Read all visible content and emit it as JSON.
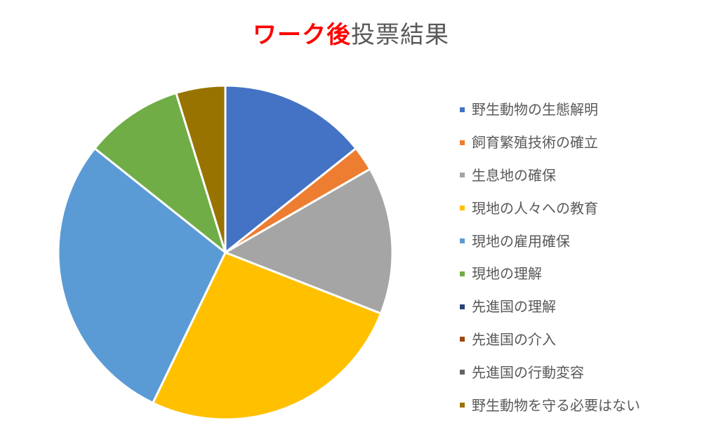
{
  "title": {
    "highlight": "ワーク後",
    "rest": "投票結果",
    "highlight_color": "#ff0000"
  },
  "chart_data": {
    "type": "pie",
    "title": "ワーク後投票結果",
    "legend_position": "right",
    "start_angle_deg": 0,
    "direction": "clockwise",
    "categories": [
      "野生動物の生態解明",
      "飼育繁殖技術の確立",
      "生息地の確保",
      "現地の人々への教育",
      "現地の雇用確保",
      "現地の理解",
      "先進国の理解",
      "先進国の介入",
      "先進国の行動変容",
      "野生動物を守る必要はない"
    ],
    "values": [
      6,
      1,
      6,
      11,
      12,
      4,
      0,
      0,
      0,
      2
    ],
    "percent_approx": [
      14.3,
      2.4,
      14.3,
      26.2,
      28.6,
      9.5,
      0,
      0,
      0,
      4.8
    ],
    "colors": [
      "#4472c4",
      "#ed7d31",
      "#a5a5a5",
      "#ffc000",
      "#5b9bd5",
      "#70ad47",
      "#264478",
      "#9e480e",
      "#636363",
      "#997300"
    ]
  },
  "legend": {
    "items": [
      {
        "label": "野生動物の生態解明",
        "color": "#4472c4"
      },
      {
        "label": "飼育繁殖技術の確立",
        "color": "#ed7d31"
      },
      {
        "label": "生息地の確保",
        "color": "#a5a5a5"
      },
      {
        "label": "現地の人々への教育",
        "color": "#ffc000"
      },
      {
        "label": "現地の雇用確保",
        "color": "#5b9bd5"
      },
      {
        "label": "現地の理解",
        "color": "#70ad47"
      },
      {
        "label": "先進国の理解",
        "color": "#264478"
      },
      {
        "label": "先進国の介入",
        "color": "#9e480e"
      },
      {
        "label": "先進国の行動変容",
        "color": "#636363"
      },
      {
        "label": "野生動物を守る必要はない",
        "color": "#997300"
      }
    ]
  }
}
